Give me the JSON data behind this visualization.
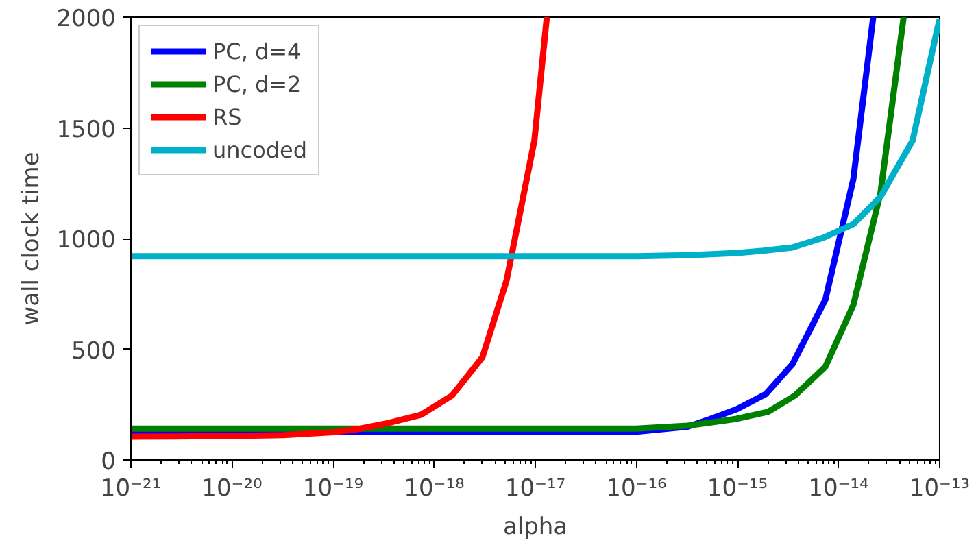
{
  "chart_data": {
    "type": "line",
    "xlabel": "alpha",
    "ylabel": "wall clock time",
    "log": "x",
    "grid": false,
    "legend": "top left",
    "line_style": "solid",
    "marker": "none",
    "xlim": [
      1e-21,
      1e-13
    ],
    "ylim": [
      0,
      2000
    ],
    "xticks": [
      {
        "value": 1e-21,
        "label": "10⁻²¹"
      },
      {
        "value": 1e-20,
        "label": "10⁻²⁰"
      },
      {
        "value": 1e-19,
        "label": "10⁻¹⁹"
      },
      {
        "value": 1e-18,
        "label": "10⁻¹⁸"
      },
      {
        "value": 1e-17,
        "label": "10⁻¹⁷"
      },
      {
        "value": 1e-16,
        "label": "10⁻¹⁶"
      },
      {
        "value": 1e-15,
        "label": "10⁻¹⁵"
      },
      {
        "value": 1e-14,
        "label": "10⁻¹⁴"
      },
      {
        "value": 1e-13,
        "label": "10⁻¹³"
      }
    ],
    "yticks": [
      0,
      500,
      1000,
      1500,
      2000
    ],
    "series": [
      {
        "name": "PC, d=4",
        "color": "#0000ff",
        "x": [
          1e-21,
          1e-16,
          3.2e-16,
          5e-16,
          9.8e-16,
          1.9e-15,
          3.5e-15,
          7.4e-15,
          1.4e-14,
          2.2e-14
        ],
        "values": [
          125,
          128,
          150,
          180,
          229,
          297,
          433,
          724,
          1269,
          2000
        ]
      },
      {
        "name": "PC, d=2",
        "color": "#008000",
        "x": [
          1e-21,
          1e-16,
          3.2e-16,
          5.6e-16,
          9.8e-16,
          2e-15,
          3.7e-15,
          7.4e-15,
          1.4e-14,
          2.6e-14,
          4.4e-14
        ],
        "values": [
          142,
          142,
          155,
          170,
          186,
          217,
          291,
          421,
          700,
          1207,
          2000
        ]
      },
      {
        "name": "RS",
        "color": "#ff0000",
        "x": [
          1e-21,
          1e-20,
          3.2e-20,
          1e-19,
          1.8e-19,
          3.5e-19,
          7.4e-19,
          1.5e-18,
          3e-18,
          5.2e-18,
          9.8e-18,
          1.3e-17
        ],
        "values": [
          105,
          108,
          112,
          125,
          140,
          167,
          204,
          291,
          464,
          811,
          1443,
          2000
        ]
      },
      {
        "name": "uncoded",
        "color": "#00b0c8",
        "x": [
          1e-21,
          1e-16,
          3.2e-16,
          1e-15,
          1.8e-15,
          3.5e-15,
          7e-15,
          1.4e-14,
          2.6e-14,
          5.4e-14,
          9.5e-14,
          1e-13
        ],
        "values": [
          920,
          920,
          925,
          935,
          945,
          960,
          1003,
          1065,
          1189,
          1443,
          1950,
          1990
        ]
      }
    ]
  }
}
